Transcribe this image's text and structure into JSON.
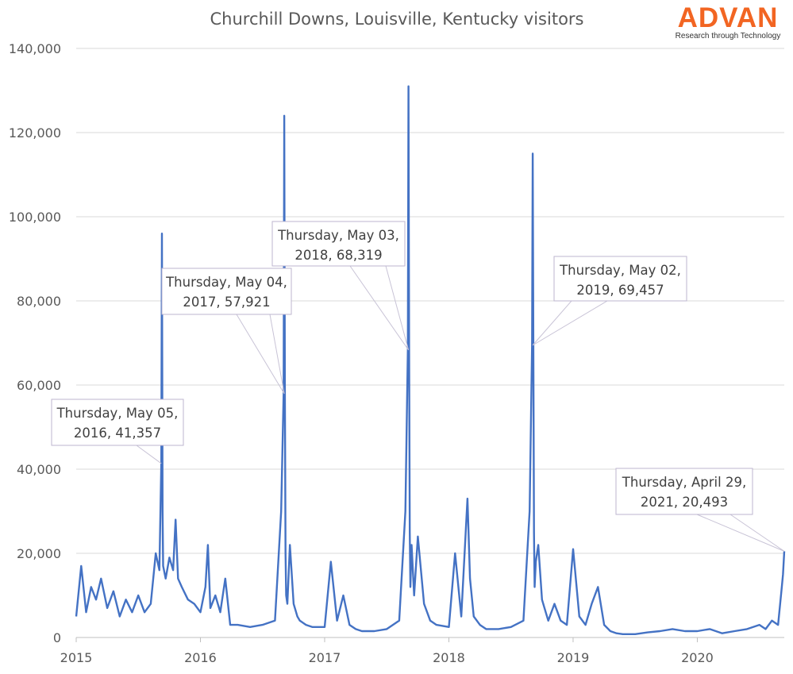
{
  "brand": {
    "name": "ADVAN",
    "tagline": "Research through Technology",
    "color": "#F26522"
  },
  "chart_data": {
    "type": "line",
    "title": "Churchill Downs, Louisville, Kentucky visitors",
    "xlabel": "",
    "ylabel": "",
    "ylim": [
      0,
      140000
    ],
    "yticks": [
      0,
      20000,
      40000,
      60000,
      80000,
      100000,
      120000,
      140000
    ],
    "ytick_labels": [
      "0",
      "20,000",
      "40,000",
      "60,000",
      "80,000",
      "100,000",
      "120,000",
      "140,000"
    ],
    "xlim": [
      2015.0,
      2020.7
    ],
    "xticks": [
      2015,
      2016,
      2017,
      2018,
      2019,
      2020
    ],
    "xtick_labels": [
      "2015",
      "2016",
      "2017",
      "2018",
      "2019",
      "2020"
    ],
    "grid": true,
    "legend": "none",
    "series_color": "#4472C4",
    "series": [
      {
        "name": "visitors",
        "x": [
          2015.0,
          2015.04,
          2015.08,
          2015.12,
          2015.16,
          2015.2,
          2015.25,
          2015.3,
          2015.35,
          2015.4,
          2015.45,
          2015.5,
          2015.55,
          2015.6,
          2015.64,
          2015.67,
          2015.685,
          2015.69,
          2015.695,
          2015.7,
          2015.72,
          2015.75,
          2015.78,
          2015.8,
          2015.82,
          2015.85,
          2015.9,
          2015.95,
          2016.0,
          2016.04,
          2016.06,
          2016.08,
          2016.12,
          2016.16,
          2016.2,
          2016.24,
          2016.3,
          2016.4,
          2016.5,
          2016.6,
          2016.65,
          2016.67,
          2016.675,
          2016.68,
          2016.685,
          2016.69,
          2016.7,
          2016.72,
          2016.75,
          2016.78,
          2016.8,
          2016.85,
          2016.9,
          2017.0,
          2017.05,
          2017.1,
          2017.15,
          2017.2,
          2017.25,
          2017.3,
          2017.4,
          2017.5,
          2017.6,
          2017.65,
          2017.67,
          2017.675,
          2017.68,
          2017.685,
          2017.69,
          2017.7,
          2017.72,
          2017.75,
          2017.8,
          2017.85,
          2017.9,
          2018.0,
          2018.05,
          2018.1,
          2018.15,
          2018.17,
          2018.2,
          2018.25,
          2018.3,
          2018.4,
          2018.5,
          2018.6,
          2018.65,
          2018.67,
          2018.675,
          2018.68,
          2018.685,
          2018.69,
          2018.7,
          2018.72,
          2018.75,
          2018.78,
          2018.8,
          2018.85,
          2018.9,
          2018.95,
          2019.0,
          2019.05,
          2019.1,
          2019.15,
          2019.2,
          2019.25,
          2019.3,
          2019.35,
          2019.4,
          2019.5,
          2019.6,
          2019.7,
          2019.8,
          2019.9,
          2020.0,
          2020.1,
          2020.2,
          2020.3,
          2020.4,
          2020.5,
          2020.55,
          2020.6,
          2020.65,
          2020.68,
          2020.69,
          2020.7
        ],
        "values": [
          5000,
          17000,
          6000,
          12000,
          9000,
          14000,
          7000,
          11000,
          5000,
          9000,
          6000,
          10000,
          6000,
          8000,
          20000,
          16000,
          41357,
          96000,
          30000,
          17000,
          14000,
          19000,
          16000,
          28000,
          14000,
          12000,
          9000,
          8000,
          6000,
          12000,
          22000,
          7000,
          10000,
          6000,
          14000,
          3000,
          3000,
          2500,
          3000,
          4000,
          30000,
          57921,
          124000,
          57921,
          20000,
          10000,
          8000,
          22000,
          8000,
          5000,
          4000,
          3000,
          2500,
          2500,
          18000,
          4000,
          10000,
          3000,
          2000,
          1500,
          1500,
          2000,
          4000,
          30000,
          68319,
          131000,
          68319,
          25000,
          12000,
          22000,
          10000,
          24000,
          8000,
          4000,
          3000,
          2500,
          20000,
          5000,
          33000,
          14000,
          5000,
          3000,
          2000,
          2000,
          2500,
          4000,
          30000,
          69457,
          115000,
          69457,
          25000,
          12000,
          18000,
          22000,
          9000,
          6000,
          4000,
          8000,
          4000,
          3000,
          21000,
          5000,
          3000,
          8000,
          12000,
          3000,
          1500,
          1000,
          800,
          800,
          1200,
          1500,
          2000,
          1500,
          1500,
          2000,
          1000,
          1500,
          2000,
          3000,
          2000,
          4000,
          3000,
          12000,
          15000,
          20493
        ]
      }
    ],
    "annotations": [
      {
        "line1": "Thursday, May 05,",
        "line2": "2016, 41,357",
        "x": 2015.685,
        "y": 41357
      },
      {
        "line1": "Thursday, May 04,",
        "line2": "2017, 57,921",
        "x": 2016.675,
        "y": 57921
      },
      {
        "line1": "Thursday, May 03,",
        "line2": "2018, 68,319",
        "x": 2017.675,
        "y": 68319
      },
      {
        "line1": "Thursday, May 02,",
        "line2": "2019, 69,457",
        "x": 2018.675,
        "y": 69457
      },
      {
        "line1": "Thursday, April 29,",
        "line2": "2021, 20,493",
        "x": 2020.7,
        "y": 20493
      }
    ]
  }
}
